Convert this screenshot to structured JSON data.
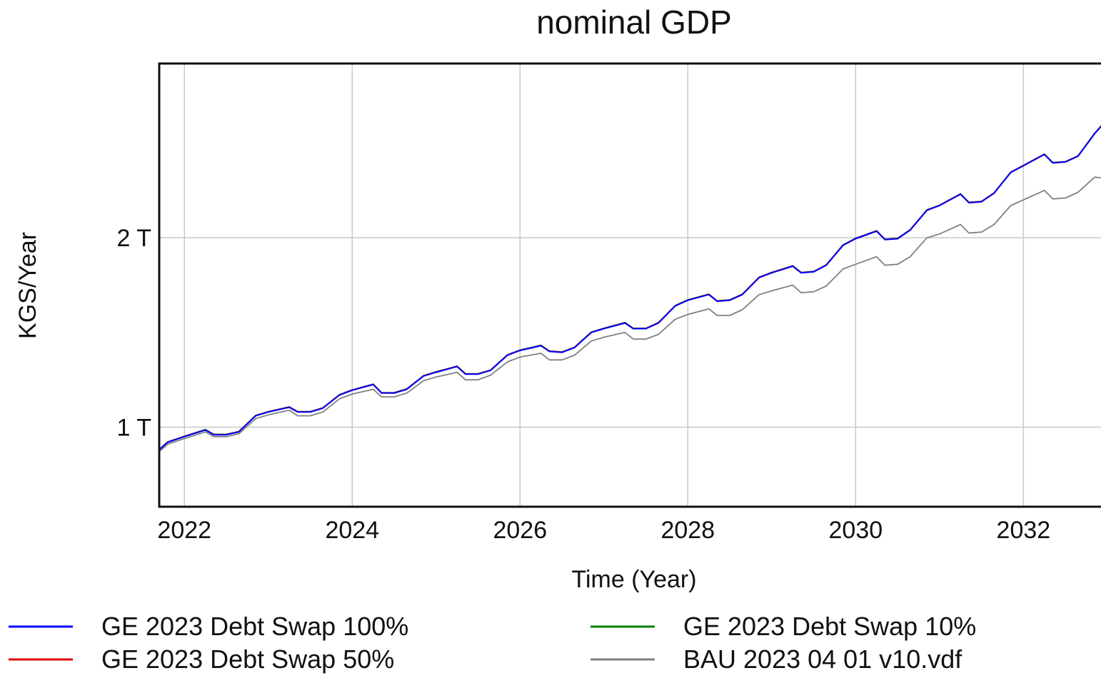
{
  "chart_data": {
    "type": "line",
    "title": "nominal GDP",
    "xlabel": "Time (Year)",
    "ylabel": "KGS/Year",
    "xlim": [
      2021.7,
      2032.95
    ],
    "ylim": [
      0.58,
      2.92
    ],
    "x_ticks": [
      {
        "value": 2022,
        "label": "2022"
      },
      {
        "value": 2024,
        "label": "2024"
      },
      {
        "value": 2026,
        "label": "2026"
      },
      {
        "value": 2028,
        "label": "2028"
      },
      {
        "value": 2030,
        "label": "2030"
      },
      {
        "value": 2032,
        "label": "2032"
      }
    ],
    "y_ticks": [
      {
        "value": 1,
        "label": "1 T"
      },
      {
        "value": 2,
        "label": "2 T"
      }
    ],
    "grid": true,
    "legend_position": "bottom",
    "x": [
      2021.7,
      2021.8,
      2022.0,
      2022.25,
      2022.35,
      2022.5,
      2022.65,
      2022.85,
      2023.0,
      2023.25,
      2023.35,
      2023.5,
      2023.65,
      2023.85,
      2024.0,
      2024.25,
      2024.35,
      2024.5,
      2024.65,
      2024.85,
      2025.0,
      2025.25,
      2025.35,
      2025.5,
      2025.65,
      2025.85,
      2026.0,
      2026.25,
      2026.35,
      2026.5,
      2026.65,
      2026.85,
      2027.0,
      2027.25,
      2027.35,
      2027.5,
      2027.65,
      2027.85,
      2028.0,
      2028.25,
      2028.35,
      2028.5,
      2028.65,
      2028.85,
      2029.0,
      2029.25,
      2029.35,
      2029.5,
      2029.65,
      2029.85,
      2030.0,
      2030.25,
      2030.35,
      2030.5,
      2030.65,
      2030.85,
      2031.0,
      2031.25,
      2031.35,
      2031.5,
      2031.65,
      2031.85,
      2032.0,
      2032.25,
      2032.35,
      2032.5,
      2032.65,
      2032.85,
      2032.95
    ],
    "series": [
      {
        "name": "GE 2023 Debt Swap 100%",
        "color": "#0000ff",
        "values": [
          0.88,
          0.92,
          0.95,
          0.985,
          0.96,
          0.96,
          0.975,
          1.06,
          1.08,
          1.105,
          1.08,
          1.08,
          1.1,
          1.17,
          1.195,
          1.225,
          1.18,
          1.18,
          1.2,
          1.27,
          1.29,
          1.32,
          1.28,
          1.28,
          1.3,
          1.38,
          1.405,
          1.43,
          1.4,
          1.395,
          1.42,
          1.5,
          1.52,
          1.55,
          1.52,
          1.52,
          1.55,
          1.64,
          1.67,
          1.7,
          1.665,
          1.67,
          1.7,
          1.79,
          1.815,
          1.85,
          1.815,
          1.82,
          1.855,
          1.96,
          1.995,
          2.035,
          1.99,
          1.995,
          2.04,
          2.145,
          2.17,
          2.23,
          2.185,
          2.19,
          2.235,
          2.345,
          2.38,
          2.44,
          2.395,
          2.4,
          2.43,
          2.55,
          2.6
        ]
      },
      {
        "name": "GE 2023 Debt Swap 50%",
        "color": "#e00000",
        "values": [
          0.881,
          0.921,
          0.951,
          0.986,
          0.961,
          0.961,
          0.976,
          1.061,
          1.081,
          1.106,
          1.081,
          1.081,
          1.101,
          1.171,
          1.196,
          1.226,
          1.181,
          1.181,
          1.201,
          1.271,
          1.291,
          1.321,
          1.281,
          1.281,
          1.301,
          1.381,
          1.406,
          1.431,
          1.401,
          1.396,
          1.421,
          1.501,
          1.521,
          1.551,
          1.521,
          1.521,
          1.551,
          1.641,
          1.671,
          1.701,
          1.666,
          1.671,
          1.701,
          1.791,
          1.816,
          1.851,
          1.816,
          1.821,
          1.856,
          1.961,
          1.996,
          2.036,
          1.991,
          1.996,
          2.041,
          2.146,
          2.171,
          2.231,
          2.186,
          2.191,
          2.236,
          2.346,
          2.381,
          2.441,
          2.396,
          2.401,
          2.431,
          2.551,
          2.601
        ]
      },
      {
        "name": "GE 2023 Debt Swap 10%",
        "color": "#008000",
        "values": [
          0.882,
          0.922,
          0.952,
          0.987,
          0.962,
          0.962,
          0.977,
          1.062,
          1.082,
          1.107,
          1.082,
          1.082,
          1.102,
          1.172,
          1.197,
          1.227,
          1.182,
          1.182,
          1.202,
          1.272,
          1.292,
          1.322,
          1.282,
          1.282,
          1.302,
          1.382,
          1.407,
          1.432,
          1.402,
          1.397,
          1.422,
          1.502,
          1.522,
          1.552,
          1.522,
          1.522,
          1.552,
          1.642,
          1.672,
          1.702,
          1.667,
          1.672,
          1.702,
          1.792,
          1.817,
          1.852,
          1.817,
          1.822,
          1.857,
          1.962,
          1.997,
          2.037,
          1.992,
          1.997,
          2.042,
          2.147,
          2.172,
          2.232,
          2.187,
          2.192,
          2.237,
          2.347,
          2.382,
          2.442,
          2.397,
          2.402,
          2.432,
          2.552,
          2.602
        ]
      },
      {
        "name": "BAU 2023 04 01 v10.vdf",
        "color": "#808080",
        "values": [
          0.87,
          0.91,
          0.94,
          0.975,
          0.95,
          0.95,
          0.965,
          1.045,
          1.065,
          1.09,
          1.06,
          1.06,
          1.08,
          1.15,
          1.175,
          1.2,
          1.16,
          1.16,
          1.18,
          1.245,
          1.265,
          1.29,
          1.25,
          1.25,
          1.275,
          1.345,
          1.37,
          1.39,
          1.355,
          1.355,
          1.38,
          1.455,
          1.475,
          1.5,
          1.465,
          1.465,
          1.49,
          1.57,
          1.595,
          1.625,
          1.59,
          1.59,
          1.62,
          1.7,
          1.72,
          1.75,
          1.71,
          1.715,
          1.745,
          1.835,
          1.86,
          1.9,
          1.855,
          1.86,
          1.9,
          2.0,
          2.02,
          2.07,
          2.025,
          2.03,
          2.07,
          2.17,
          2.2,
          2.25,
          2.205,
          2.21,
          2.24,
          2.32,
          2.315
        ]
      }
    ]
  },
  "legend": {
    "items": [
      {
        "label": "GE 2023 Debt Swap 100%",
        "color": "#0000ff"
      },
      {
        "label": "GE 2023 Debt Swap 10%",
        "color": "#008000"
      },
      {
        "label": "GE 2023 Debt Swap 50%",
        "color": "#e00000"
      },
      {
        "label": "BAU 2023 04 01 v10.vdf",
        "color": "#808080"
      }
    ]
  }
}
